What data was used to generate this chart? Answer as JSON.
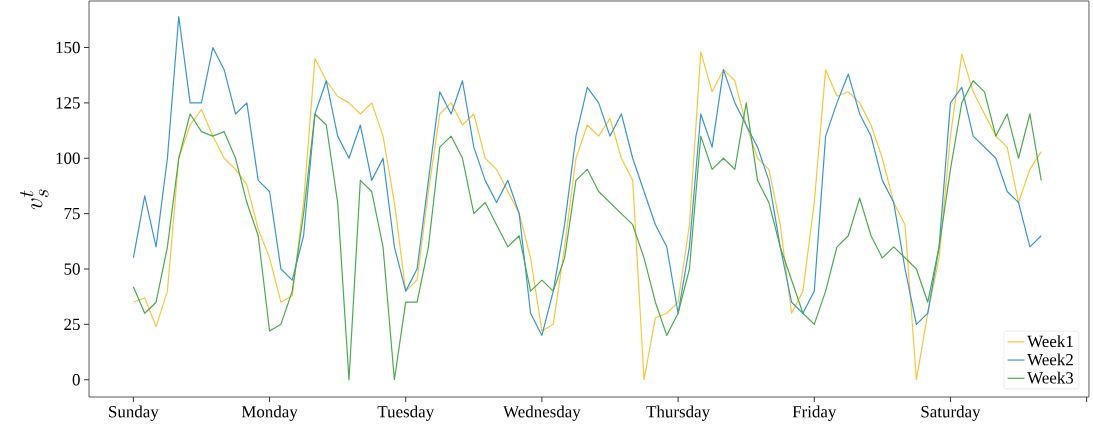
{
  "chart_data": {
    "type": "line",
    "ylabel": "v_s^t",
    "ylim": [
      -7.8,
      171
    ],
    "categories": [
      "Sunday",
      null,
      null,
      null,
      null,
      null,
      null,
      null,
      null,
      null,
      null,
      null,
      "Monday",
      null,
      null,
      null,
      null,
      null,
      null,
      null,
      null,
      null,
      null,
      null,
      "Tuesday",
      null,
      null,
      null,
      null,
      null,
      null,
      null,
      null,
      null,
      null,
      null,
      "Wednesday",
      null,
      null,
      null,
      null,
      null,
      null,
      null,
      null,
      null,
      null,
      null,
      "Thursday",
      null,
      null,
      null,
      null,
      null,
      null,
      null,
      null,
      null,
      null,
      null,
      "Friday",
      null,
      null,
      null,
      null,
      null,
      null,
      null,
      null,
      null,
      null,
      null,
      "Saturday",
      null,
      null,
      null,
      null,
      null,
      null,
      null,
      null,
      null,
      null,
      null,
      null
    ],
    "yticks": [
      0,
      25,
      50,
      75,
      100,
      125,
      150
    ],
    "legend": "bottom right",
    "marker": "none",
    "line_style": "solid",
    "series": [
      {
        "name": "Week1",
        "color": "#f7c63e",
        "values": [
          35,
          37,
          24,
          40,
          100,
          115,
          122,
          110,
          100,
          95,
          88,
          68,
          55,
          35,
          38,
          80,
          145,
          135,
          128,
          125,
          120,
          125,
          110,
          80,
          40,
          45,
          85,
          120,
          125,
          115,
          120,
          100,
          95,
          85,
          75,
          55,
          22,
          25,
          60,
          100,
          115,
          110,
          118,
          100,
          90,
          0,
          28,
          30,
          35,
          70,
          148,
          130,
          140,
          135,
          115,
          100,
          95,
          70,
          30,
          40,
          80,
          140,
          128,
          130,
          125,
          115,
          100,
          80,
          70,
          0,
          30,
          55,
          110,
          147,
          130,
          120,
          110,
          105,
          80,
          95,
          103,
          null,
          null,
          null,
          null
        ]
      },
      {
        "name": "Week2",
        "color": "#3a95cf",
        "values": [
          55,
          83,
          60,
          100,
          164,
          125,
          125,
          150,
          140,
          120,
          125,
          90,
          85,
          50,
          45,
          65,
          120,
          135,
          110,
          100,
          115,
          90,
          100,
          60,
          40,
          50,
          90,
          130,
          120,
          135,
          105,
          90,
          80,
          90,
          75,
          30,
          20,
          40,
          70,
          110,
          132,
          125,
          110,
          120,
          100,
          85,
          70,
          60,
          30,
          60,
          120,
          105,
          140,
          125,
          115,
          105,
          90,
          60,
          35,
          30,
          40,
          110,
          125,
          138,
          120,
          110,
          90,
          80,
          50,
          25,
          30,
          60,
          125,
          132,
          110,
          105,
          100,
          85,
          80,
          60,
          65,
          null,
          null,
          null,
          null
        ]
      },
      {
        "name": "Week3",
        "color": "#4aab4e",
        "values": [
          42,
          30,
          35,
          60,
          100,
          120,
          112,
          110,
          112,
          100,
          80,
          65,
          22,
          25,
          40,
          75,
          120,
          115,
          80,
          0,
          90,
          85,
          60,
          0,
          35,
          35,
          60,
          105,
          110,
          100,
          75,
          80,
          70,
          60,
          65,
          40,
          45,
          40,
          55,
          90,
          95,
          85,
          80,
          75,
          70,
          55,
          35,
          20,
          30,
          50,
          110,
          95,
          100,
          95,
          125,
          90,
          80,
          60,
          45,
          30,
          25,
          40,
          60,
          65,
          82,
          65,
          55,
          60,
          55,
          50,
          35,
          60,
          95,
          125,
          135,
          130,
          110,
          120,
          100,
          120,
          90,
          null,
          null,
          null,
          null
        ]
      }
    ]
  }
}
